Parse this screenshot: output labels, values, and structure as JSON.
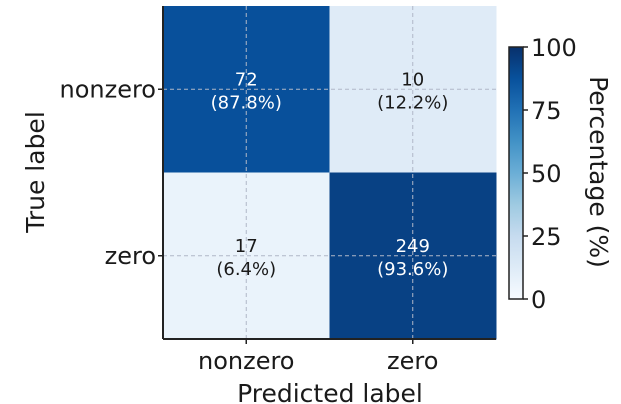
{
  "chart_data": {
    "type": "heatmap",
    "x_categories": [
      "nonzero",
      "zero"
    ],
    "y_categories": [
      "nonzero",
      "zero"
    ],
    "counts": [
      [
        72,
        10
      ],
      [
        17,
        249
      ]
    ],
    "percentages": [
      [
        87.8,
        12.2
      ],
      [
        6.4,
        93.6
      ]
    ],
    "cell_text": [
      [
        {
          "count": "72",
          "pct": "(87.8%)"
        },
        {
          "count": "10",
          "pct": "(12.2%)"
        }
      ],
      [
        {
          "count": "17",
          "pct": "(6.4%)"
        },
        {
          "count": "249",
          "pct": "(93.6%)"
        }
      ]
    ],
    "xlabel": "Predicted label",
    "ylabel": "True label",
    "colorbar": {
      "label": "Percentage (%)",
      "range": [
        0,
        100
      ],
      "ticks": [
        "0",
        "25",
        "50",
        "75",
        "100"
      ],
      "colormap": "Blues"
    },
    "grid": true
  }
}
